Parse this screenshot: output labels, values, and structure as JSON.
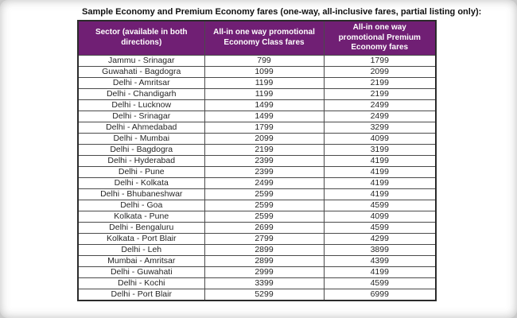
{
  "title": "Sample Economy and Premium Economy fares (one-way, all-inclusive fares, partial listing only):",
  "colors": {
    "header_bg": "#701f74",
    "header_text": "#ffffff",
    "border": "#4a4a4a",
    "outer_border": "#2b2b2b",
    "body_text": "#262626",
    "page_bg": "#ffffff"
  },
  "table": {
    "columns": [
      "Sector (available in both directions)",
      "All-in one way promotional Economy Class fares",
      "All-in one way promotional Premium Economy fares"
    ],
    "rows": [
      {
        "sector": "Jammu - Srinagar",
        "economy_fare": "799",
        "premium_fare": "1799"
      },
      {
        "sector": "Guwahati - Bagdogra",
        "economy_fare": "1099",
        "premium_fare": "2099"
      },
      {
        "sector": "Delhi - Amritsar",
        "economy_fare": "1199",
        "premium_fare": "2199"
      },
      {
        "sector": "Delhi - Chandigarh",
        "economy_fare": "1199",
        "premium_fare": "2199"
      },
      {
        "sector": "Delhi - Lucknow",
        "economy_fare": "1499",
        "premium_fare": "2499"
      },
      {
        "sector": "Delhi - Srinagar",
        "economy_fare": "1499",
        "premium_fare": "2499"
      },
      {
        "sector": "Delhi - Ahmedabad",
        "economy_fare": "1799",
        "premium_fare": "3299"
      },
      {
        "sector": "Delhi - Mumbai",
        "economy_fare": "2099",
        "premium_fare": "4099"
      },
      {
        "sector": "Delhi - Bagdogra",
        "economy_fare": "2199",
        "premium_fare": "3199"
      },
      {
        "sector": "Delhi - Hyderabad",
        "economy_fare": "2399",
        "premium_fare": "4199"
      },
      {
        "sector": "Delhi - Pune",
        "economy_fare": "2399",
        "premium_fare": "4199"
      },
      {
        "sector": "Delhi - Kolkata",
        "economy_fare": "2499",
        "premium_fare": "4199"
      },
      {
        "sector": "Delhi - Bhubaneshwar",
        "economy_fare": "2599",
        "premium_fare": "4199"
      },
      {
        "sector": "Delhi - Goa",
        "economy_fare": "2599",
        "premium_fare": "4599"
      },
      {
        "sector": "Kolkata - Pune",
        "economy_fare": "2599",
        "premium_fare": "4099"
      },
      {
        "sector": "Delhi - Bengaluru",
        "economy_fare": "2699",
        "premium_fare": "4599"
      },
      {
        "sector": "Kolkata - Port Blair",
        "economy_fare": "2799",
        "premium_fare": "4299"
      },
      {
        "sector": "Delhi - Leh",
        "economy_fare": "2899",
        "premium_fare": "3899"
      },
      {
        "sector": "Mumbai - Amritsar",
        "economy_fare": "2899",
        "premium_fare": "4399"
      },
      {
        "sector": "Delhi - Guwahati",
        "economy_fare": "2999",
        "premium_fare": "4199"
      },
      {
        "sector": "Delhi - Kochi",
        "economy_fare": "3399",
        "premium_fare": "4599"
      },
      {
        "sector": "Delhi - Port Blair",
        "economy_fare": "5299",
        "premium_fare": "6999"
      }
    ]
  },
  "chart_data": {
    "type": "table",
    "title": "Sample Economy and Premium Economy fares (one-way, all-inclusive fares, partial listing only):",
    "columns": [
      "Sector (available in both directions)",
      "All-in one way promotional Economy Class fares",
      "All-in one way promotional Premium Economy fares"
    ],
    "rows": [
      [
        "Jammu - Srinagar",
        799,
        1799
      ],
      [
        "Guwahati - Bagdogra",
        1099,
        2099
      ],
      [
        "Delhi - Amritsar",
        1199,
        2199
      ],
      [
        "Delhi - Chandigarh",
        1199,
        2199
      ],
      [
        "Delhi - Lucknow",
        1499,
        2499
      ],
      [
        "Delhi - Srinagar",
        1499,
        2499
      ],
      [
        "Delhi - Ahmedabad",
        1799,
        3299
      ],
      [
        "Delhi - Mumbai",
        2099,
        4099
      ],
      [
        "Delhi - Bagdogra",
        2199,
        3199
      ],
      [
        "Delhi - Hyderabad",
        2399,
        4199
      ],
      [
        "Delhi - Pune",
        2399,
        4199
      ],
      [
        "Delhi - Kolkata",
        2499,
        4199
      ],
      [
        "Delhi - Bhubaneshwar",
        2599,
        4199
      ],
      [
        "Delhi - Goa",
        2599,
        4599
      ],
      [
        "Kolkata - Pune",
        2599,
        4099
      ],
      [
        "Delhi - Bengaluru",
        2699,
        4599
      ],
      [
        "Kolkata - Port Blair",
        2799,
        4299
      ],
      [
        "Delhi - Leh",
        2899,
        3899
      ],
      [
        "Mumbai - Amritsar",
        2899,
        4399
      ],
      [
        "Delhi - Guwahati",
        2999,
        4199
      ],
      [
        "Delhi - Kochi",
        3399,
        4599
      ],
      [
        "Delhi - Port Blair",
        5299,
        6999
      ]
    ]
  }
}
